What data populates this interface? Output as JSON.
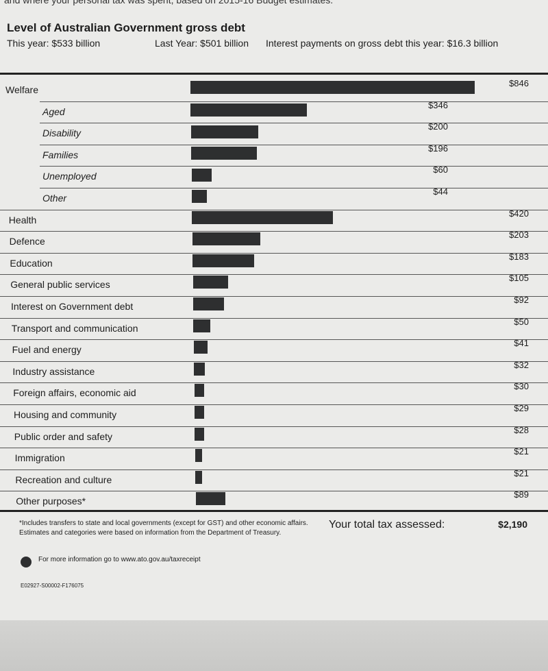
{
  "intro": "and where your personal tax was spent, based on 2015-16 Budget estimates.",
  "debt": {
    "title": "Level of Australian Government gross debt",
    "this_year": "This year: $533 billion",
    "last_year": "Last Year: $501 billion",
    "interest": "Interest payments on gross debt this year: $16.3 billion"
  },
  "rows": [
    {
      "label": "Welfare",
      "value": 846,
      "value_label": "$846",
      "level": "main"
    },
    {
      "label": "Aged",
      "value": 346,
      "value_label": "$346",
      "level": "sub"
    },
    {
      "label": "Disability",
      "value": 200,
      "value_label": "$200",
      "level": "sub"
    },
    {
      "label": "Families",
      "value": 196,
      "value_label": "$196",
      "level": "sub"
    },
    {
      "label": "Unemployed",
      "value": 60,
      "value_label": "$60",
      "level": "sub"
    },
    {
      "label": "Other",
      "value": 44,
      "value_label": "$44",
      "level": "sub"
    },
    {
      "label": "Health",
      "value": 420,
      "value_label": "$420",
      "level": "main"
    },
    {
      "label": "Defence",
      "value": 203,
      "value_label": "$203",
      "level": "main"
    },
    {
      "label": "Education",
      "value": 183,
      "value_label": "$183",
      "level": "main"
    },
    {
      "label": "General public services",
      "value": 105,
      "value_label": "$105",
      "level": "main"
    },
    {
      "label": "Interest on Government debt",
      "value": 92,
      "value_label": "$92",
      "level": "main"
    },
    {
      "label": "Transport and communication",
      "value": 50,
      "value_label": "$50",
      "level": "main"
    },
    {
      "label": "Fuel and energy",
      "value": 41,
      "value_label": "$41",
      "level": "main"
    },
    {
      "label": "Industry assistance",
      "value": 32,
      "value_label": "$32",
      "level": "main"
    },
    {
      "label": "Foreign affairs, economic aid",
      "value": 30,
      "value_label": "$30",
      "level": "main"
    },
    {
      "label": "Housing and community",
      "value": 29,
      "value_label": "$29",
      "level": "main"
    },
    {
      "label": "Public order and safety",
      "value": 28,
      "value_label": "$28",
      "level": "main"
    },
    {
      "label": "Immigration",
      "value": 21,
      "value_label": "$21",
      "level": "main"
    },
    {
      "label": "Recreation and culture",
      "value": 21,
      "value_label": "$21",
      "level": "main"
    },
    {
      "label": "Other purposes*",
      "value": 89,
      "value_label": "$89",
      "level": "main"
    }
  ],
  "footer": {
    "note": "*Includes transfers to state and local governments (except for GST) and other economic affairs. Estimates and categories were based on information from the Department of Treasury.",
    "total_text": "Your total tax assessed:",
    "total_label": "$2,190",
    "more_info": "For more information go to www.ato.gov.au/taxreceipt",
    "code": "E02927-S00002-F176075"
  }
}
